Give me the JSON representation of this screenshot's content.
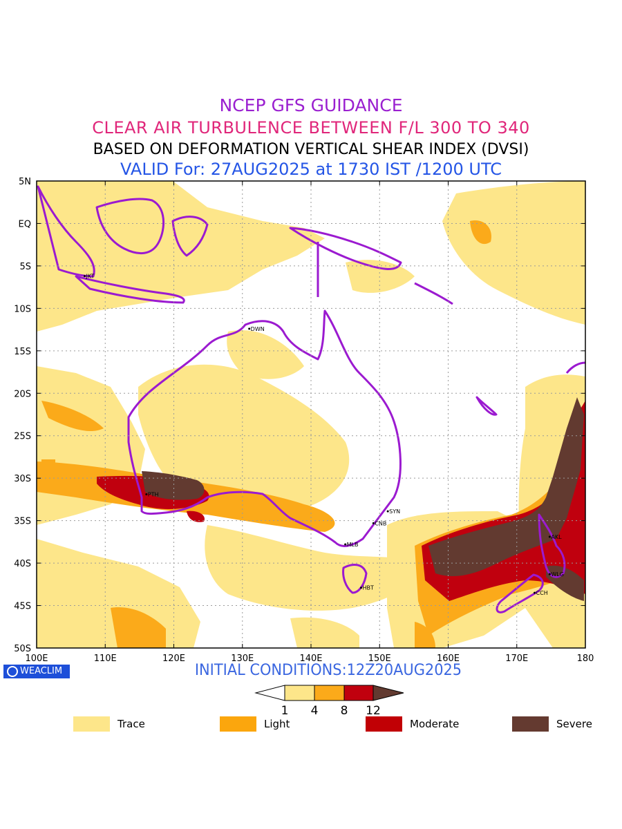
{
  "titles": {
    "line1": "NCEP GFS GUIDANCE",
    "line2": "CLEAR AIR TURBULENCE BETWEEN F/L 300 TO 340",
    "line3": "BASED ON DEFORMATION VERTICAL SHEAR INDEX (DVSI)",
    "line4": "VALID For: 27AUG2025 at 1730 IST /1200 UTC"
  },
  "axes": {
    "lat_labels": [
      "5N",
      "EQ",
      "5S",
      "10S",
      "15S",
      "20S",
      "25S",
      "30S",
      "35S",
      "40S",
      "45S",
      "50S"
    ],
    "lon_labels": [
      "100E",
      "110E",
      "120E",
      "130E",
      "140E",
      "150E",
      "160E",
      "170E",
      "180"
    ],
    "lat_range": [
      -50,
      5
    ],
    "lon_range": [
      100,
      180
    ],
    "grid": true
  },
  "cities": [
    {
      "label": "JKT",
      "lon": 107,
      "lat": -6.2
    },
    {
      "label": "DWN",
      "lon": 131,
      "lat": -12.4
    },
    {
      "label": "PTH",
      "lon": 116,
      "lat": -31.9
    },
    {
      "label": "SYN",
      "lon": 151.2,
      "lat": -33.9
    },
    {
      "label": "CNB",
      "lon": 149.1,
      "lat": -35.3
    },
    {
      "label": "MLB",
      "lon": 145,
      "lat": -37.8
    },
    {
      "label": "HBT",
      "lon": 147.3,
      "lat": -42.9
    },
    {
      "label": "AKL",
      "lon": 174.8,
      "lat": -36.9
    },
    {
      "label": "WLG",
      "lon": 174.8,
      "lat": -41.3
    },
    {
      "label": "CCH",
      "lon": 172.6,
      "lat": -43.5
    }
  ],
  "colors": {
    "trace": "#fde68a",
    "light": "#fbaa1a",
    "moderate": "#c0000e",
    "severe": "#623a30",
    "coast": "#9b1ad0"
  },
  "colorbar": {
    "ticks": [
      "1",
      "4",
      "8",
      "12"
    ]
  },
  "legend": [
    {
      "label": "Trace",
      "color": "#fde68a"
    },
    {
      "label": "Light",
      "color": "#fba60d"
    },
    {
      "label": "Moderate",
      "color": "#c10005"
    },
    {
      "label": "Severe",
      "color": "#643a30"
    }
  ],
  "branding": "WEACLIM",
  "initial_conditions": "INITIAL CONDITIONS:12Z20AUG2025"
}
